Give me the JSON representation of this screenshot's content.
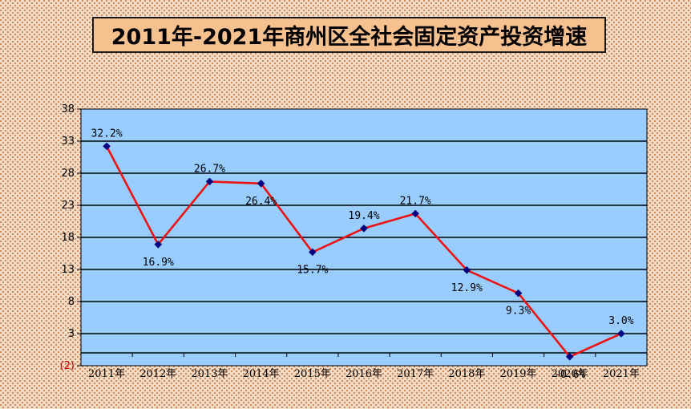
{
  "title": "2011年-2021年商州区全社会固定资产投资增速",
  "colors": {
    "plot_background": "#99ccff",
    "line": "#ee1111",
    "marker": "#000080",
    "gridline": "#000000",
    "negative_tick": "#cc0000"
  },
  "chart_data": {
    "type": "line",
    "title": "2011年-2021年商州区全社会固定资产投资增速",
    "xlabel": "",
    "ylabel": "",
    "categories": [
      "2011年",
      "2012年",
      "2013年",
      "2014年",
      "2015年",
      "2016年",
      "2017年",
      "2018年",
      "2019年",
      "2020年",
      "2021年"
    ],
    "series": [
      {
        "values": [
          32.2,
          16.9,
          26.7,
          26.4,
          15.7,
          19.4,
          21.7,
          12.9,
          9.3,
          -0.6,
          3.0
        ],
        "labels": [
          "32.2%",
          "16.9%",
          "26.7%",
          "26.4%",
          "15.7%",
          "19.4%",
          "21.7%",
          "12.9%",
          "9.3%",
          "-0.6%",
          "3.0%"
        ]
      }
    ],
    "ylim": [
      -2,
      38
    ],
    "yticks": [
      38,
      33,
      28,
      23,
      18,
      13,
      8,
      3,
      -2
    ],
    "ytick_labels": [
      "38",
      "33",
      "28",
      "23",
      "18",
      "13",
      "8",
      "3",
      "(2)"
    ],
    "grid": true,
    "legend": "none"
  }
}
